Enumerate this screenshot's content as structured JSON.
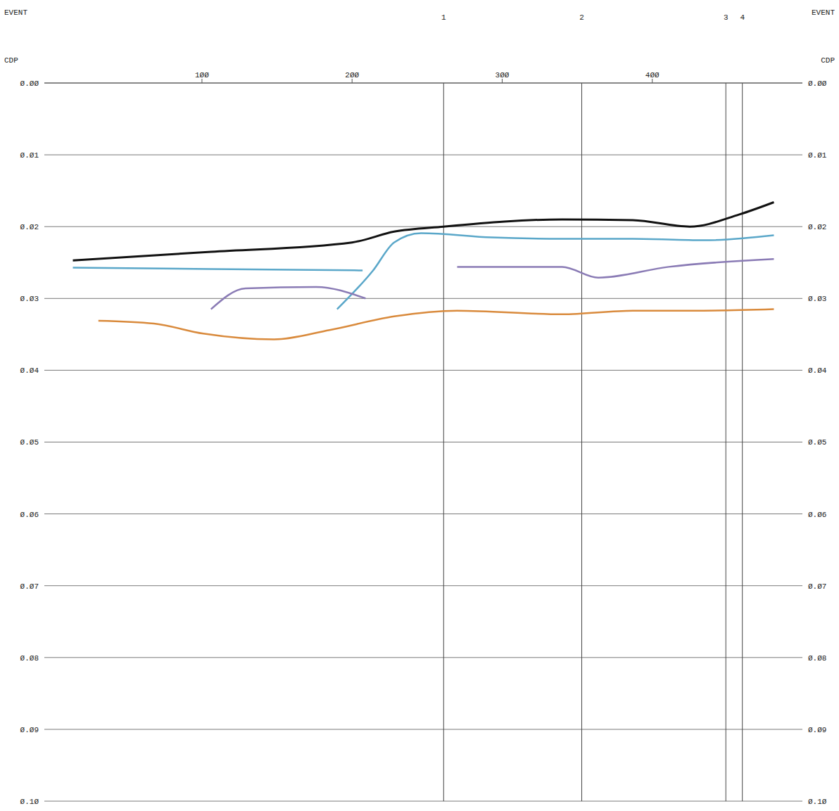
{
  "chart_data": {
    "type": "line",
    "x_label": "CDP",
    "event_label": "EVENT",
    "xlim": [
      -5,
      500
    ],
    "xticks": [
      {
        "value": 100,
        "label": "1ØØ"
      },
      {
        "value": 200,
        "label": "2ØØ"
      },
      {
        "value": 300,
        "label": "3ØØ"
      },
      {
        "value": 400,
        "label": "4ØØ"
      }
    ],
    "ylim": [
      0,
      0.1
    ],
    "yticks": [
      {
        "value": 0,
        "label": "Ø.ØØ"
      },
      {
        "value": 0.01,
        "label": "Ø.Ø1"
      },
      {
        "value": 0.02,
        "label": "Ø.Ø2"
      },
      {
        "value": 0.03,
        "label": "Ø.Ø3"
      },
      {
        "value": 0.04,
        "label": "Ø.Ø4"
      },
      {
        "value": 0.05,
        "label": "Ø.Ø5"
      },
      {
        "value": 0.06,
        "label": "Ø.Ø6"
      },
      {
        "value": 0.07,
        "label": "Ø.Ø7"
      },
      {
        "value": 0.08,
        "label": "Ø.Ø8"
      },
      {
        "value": 0.09,
        "label": "Ø.Ø9"
      },
      {
        "value": 0.1,
        "label": "Ø.1Ø"
      }
    ],
    "grid": true,
    "events": {
      "labels": [
        "1",
        "2",
        "3",
        "4"
      ],
      "x": [
        261,
        353,
        449,
        460
      ]
    },
    "series": [
      {
        "color": "#111111",
        "x": [
          14,
          106,
          200,
          228,
          261,
          340,
          387,
          425,
          458,
          481
        ],
        "values": [
          0.0247,
          0.0235,
          0.0222,
          0.0207,
          0.02,
          0.019,
          0.0191,
          0.02,
          0.0183,
          0.0166
        ]
      },
      {
        "color": "#5aa7c9",
        "x": [
          14,
          106,
          207
        ],
        "values": [
          0.0257,
          0.0259,
          0.0261
        ]
      },
      {
        "color": "#5aa7c9",
        "x": [
          190,
          214,
          228,
          246,
          293,
          340,
          387,
          434,
          481
        ],
        "values": [
          0.0315,
          0.0261,
          0.0222,
          0.0209,
          0.0215,
          0.0217,
          0.0217,
          0.0219,
          0.0212
        ]
      },
      {
        "color": "#8a7bb5",
        "x": [
          106,
          129,
          176,
          209
        ],
        "values": [
          0.0315,
          0.0286,
          0.0284,
          0.03
        ]
      },
      {
        "color": "#8a7bb5",
        "x": [
          270,
          340,
          364,
          411,
          481
        ],
        "values": [
          0.0256,
          0.0256,
          0.0271,
          0.0256,
          0.0245
        ]
      },
      {
        "color": "#d98a3c",
        "x": [
          31,
          68,
          101,
          148,
          185,
          228,
          270,
          340,
          387,
          434,
          481
        ],
        "values": [
          0.0331,
          0.0335,
          0.0349,
          0.0357,
          0.0344,
          0.0325,
          0.0317,
          0.0322,
          0.0317,
          0.0317,
          0.0315
        ]
      }
    ]
  }
}
